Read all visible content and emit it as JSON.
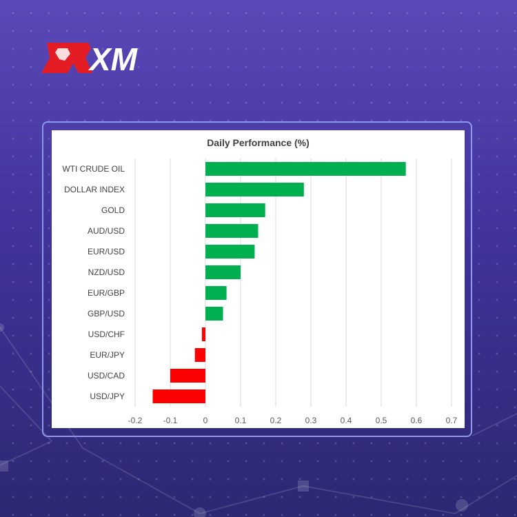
{
  "brand": {
    "name": "XM",
    "accent": "#e41d25"
  },
  "colors": {
    "positive": "#00b050",
    "negative": "#ff0000",
    "grid": "#d9d9d9"
  },
  "chart_data": {
    "type": "bar",
    "orientation": "horizontal",
    "title": "Daily Performance  (%)",
    "xlabel": "",
    "ylabel": "",
    "categories": [
      "WTI CRUDE OIL",
      "DOLLAR INDEX",
      "GOLD",
      "AUD/USD",
      "EUR/USD",
      "NZD/USD",
      "EUR/GBP",
      "GBP/USD",
      "USD/CHF",
      "EUR/JPY",
      "USD/CAD",
      "USD/JPY"
    ],
    "values": [
      0.57,
      0.28,
      0.17,
      0.15,
      0.14,
      0.1,
      0.06,
      0.05,
      -0.01,
      -0.03,
      -0.1,
      -0.15
    ],
    "xlim": [
      -0.2,
      0.7
    ],
    "xticks": [
      "-0.2",
      "-0.1",
      "0",
      "0.1",
      "0.2",
      "0.3",
      "0.4",
      "0.5",
      "0.6",
      "0.7"
    ],
    "grid": true,
    "legend": "none"
  }
}
